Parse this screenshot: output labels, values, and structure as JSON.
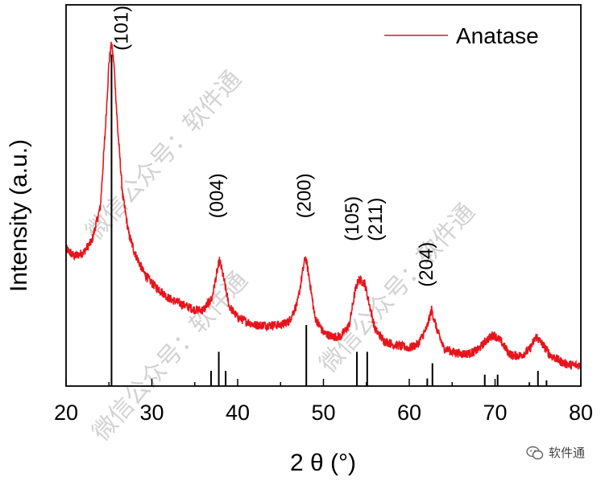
{
  "chart_data": {
    "type": "line",
    "xlabel": "2 θ (°)",
    "ylabel": "Intensity (a.u.)",
    "xlim": [
      20,
      80
    ],
    "ylim": [
      0,
      100
    ],
    "x_ticks": [
      "20",
      "30",
      "40",
      "50",
      "60",
      "70",
      "80"
    ],
    "grid": false,
    "legend_position": "top-right",
    "series": [
      {
        "name": "Anatase",
        "color": "#e8141c",
        "points": [
          [
            20,
            36
          ],
          [
            21,
            34
          ],
          [
            22,
            35
          ],
          [
            23,
            38
          ],
          [
            24,
            47
          ],
          [
            24.6,
            68
          ],
          [
            25.0,
            85
          ],
          [
            25.3,
            90
          ],
          [
            25.6,
            84
          ],
          [
            26.0,
            68
          ],
          [
            26.6,
            50
          ],
          [
            27.3,
            40
          ],
          [
            28,
            35
          ],
          [
            29,
            30
          ],
          [
            30,
            27
          ],
          [
            31,
            25
          ],
          [
            32,
            23
          ],
          [
            33,
            22
          ],
          [
            34,
            21
          ],
          [
            35,
            20
          ],
          [
            36,
            20
          ],
          [
            37,
            23
          ],
          [
            37.6,
            30
          ],
          [
            37.9,
            33
          ],
          [
            38.3,
            29
          ],
          [
            39,
            21
          ],
          [
            40,
            18
          ],
          [
            41,
            17
          ],
          [
            42,
            16
          ],
          [
            43,
            16
          ],
          [
            44,
            16
          ],
          [
            45,
            16
          ],
          [
            46,
            17
          ],
          [
            47,
            22
          ],
          [
            47.5,
            29
          ],
          [
            47.9,
            34
          ],
          [
            48.3,
            29
          ],
          [
            49,
            18
          ],
          [
            50,
            14
          ],
          [
            51,
            13
          ],
          [
            52,
            13
          ],
          [
            53,
            16
          ],
          [
            53.7,
            25
          ],
          [
            54.1,
            28
          ],
          [
            54.8,
            27
          ],
          [
            55.3,
            22
          ],
          [
            56,
            15
          ],
          [
            57,
            12
          ],
          [
            58,
            11
          ],
          [
            59,
            10.5
          ],
          [
            60,
            10
          ],
          [
            61,
            11
          ],
          [
            62,
            15
          ],
          [
            62.6,
            20
          ],
          [
            63.2,
            15
          ],
          [
            64,
            10
          ],
          [
            65,
            9
          ],
          [
            66,
            8.5
          ],
          [
            67,
            8.5
          ],
          [
            68,
            9.5
          ],
          [
            69,
            12
          ],
          [
            69.8,
            13.5
          ],
          [
            70.6,
            12
          ],
          [
            71.5,
            9
          ],
          [
            72,
            8
          ],
          [
            73,
            8
          ],
          [
            74,
            9.5
          ],
          [
            74.8,
            13
          ],
          [
            75.5,
            11
          ],
          [
            76.5,
            8
          ],
          [
            78,
            6
          ],
          [
            79,
            5.5
          ],
          [
            80,
            5.5
          ]
        ]
      }
    ],
    "reference_lines": {
      "color": "#000000",
      "peaks": [
        {
          "x": 25.3,
          "height": 87
        },
        {
          "x": 36.9,
          "height": 4
        },
        {
          "x": 37.8,
          "height": 9
        },
        {
          "x": 38.6,
          "height": 4
        },
        {
          "x": 48.0,
          "height": 16
        },
        {
          "x": 53.9,
          "height": 9
        },
        {
          "x": 55.1,
          "height": 9
        },
        {
          "x": 62.1,
          "height": 2
        },
        {
          "x": 62.7,
          "height": 6
        },
        {
          "x": 68.8,
          "height": 3
        },
        {
          "x": 70.3,
          "height": 3
        },
        {
          "x": 74.0,
          "height": 1
        },
        {
          "x": 75.0,
          "height": 4
        },
        {
          "x": 76.0,
          "height": 1.5
        }
      ]
    },
    "annotations": [
      {
        "text": "(101)",
        "x": 27.2,
        "y": 88
      },
      {
        "text": "(004)",
        "x": 38.3,
        "y": 44
      },
      {
        "text": "(200)",
        "x": 48.5,
        "y": 44
      },
      {
        "text": "(105)",
        "x": 54.1,
        "y": 38
      },
      {
        "text": "(211)",
        "x": 56.8,
        "y": 38
      },
      {
        "text": "(204)",
        "x": 62.7,
        "y": 26
      }
    ]
  },
  "watermark": {
    "text": "微信公众号：软件通",
    "brand_text": "软件通"
  }
}
